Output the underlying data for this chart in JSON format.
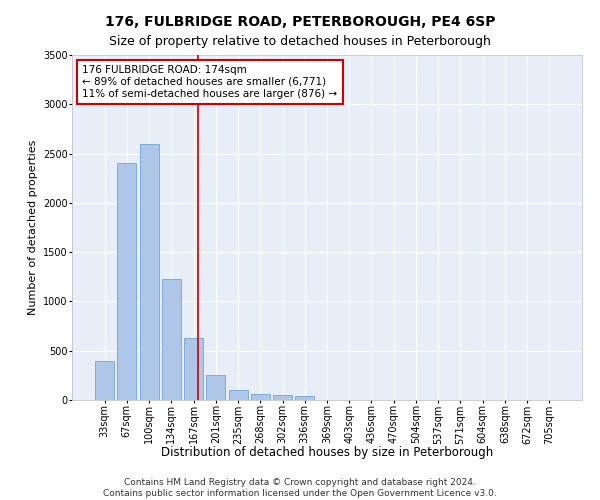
{
  "title": "176, FULBRIDGE ROAD, PETERBOROUGH, PE4 6SP",
  "subtitle": "Size of property relative to detached houses in Peterborough",
  "xlabel": "Distribution of detached houses by size in Peterborough",
  "ylabel": "Number of detached properties",
  "categories": [
    "33sqm",
    "67sqm",
    "100sqm",
    "134sqm",
    "167sqm",
    "201sqm",
    "235sqm",
    "268sqm",
    "302sqm",
    "336sqm",
    "369sqm",
    "403sqm",
    "436sqm",
    "470sqm",
    "504sqm",
    "537sqm",
    "571sqm",
    "604sqm",
    "638sqm",
    "672sqm",
    "705sqm"
  ],
  "values": [
    400,
    2400,
    2600,
    1230,
    630,
    250,
    100,
    60,
    50,
    40,
    0,
    0,
    0,
    0,
    0,
    0,
    0,
    0,
    0,
    0,
    0
  ],
  "bar_color": "#aec6e8",
  "bar_edge_color": "#5a9bd4",
  "annotation_line1": "176 FULBRIDGE ROAD: 174sqm",
  "annotation_line2": "← 89% of detached houses are smaller (6,771)",
  "annotation_line3": "11% of semi-detached houses are larger (876) →",
  "annotation_box_color": "#ffffff",
  "annotation_box_edge_color": "#cc0000",
  "vline_color": "#cc0000",
  "ylim": [
    0,
    3500
  ],
  "yticks": [
    0,
    500,
    1000,
    1500,
    2000,
    2500,
    3000,
    3500
  ],
  "background_color": "#e8eef8",
  "footer_line1": "Contains HM Land Registry data © Crown copyright and database right 2024.",
  "footer_line2": "Contains public sector information licensed under the Open Government Licence v3.0.",
  "title_fontsize": 10,
  "subtitle_fontsize": 9,
  "xlabel_fontsize": 8.5,
  "ylabel_fontsize": 8,
  "tick_fontsize": 7,
  "annotation_fontsize": 7.5,
  "footer_fontsize": 6.5,
  "vline_x": 4.2
}
